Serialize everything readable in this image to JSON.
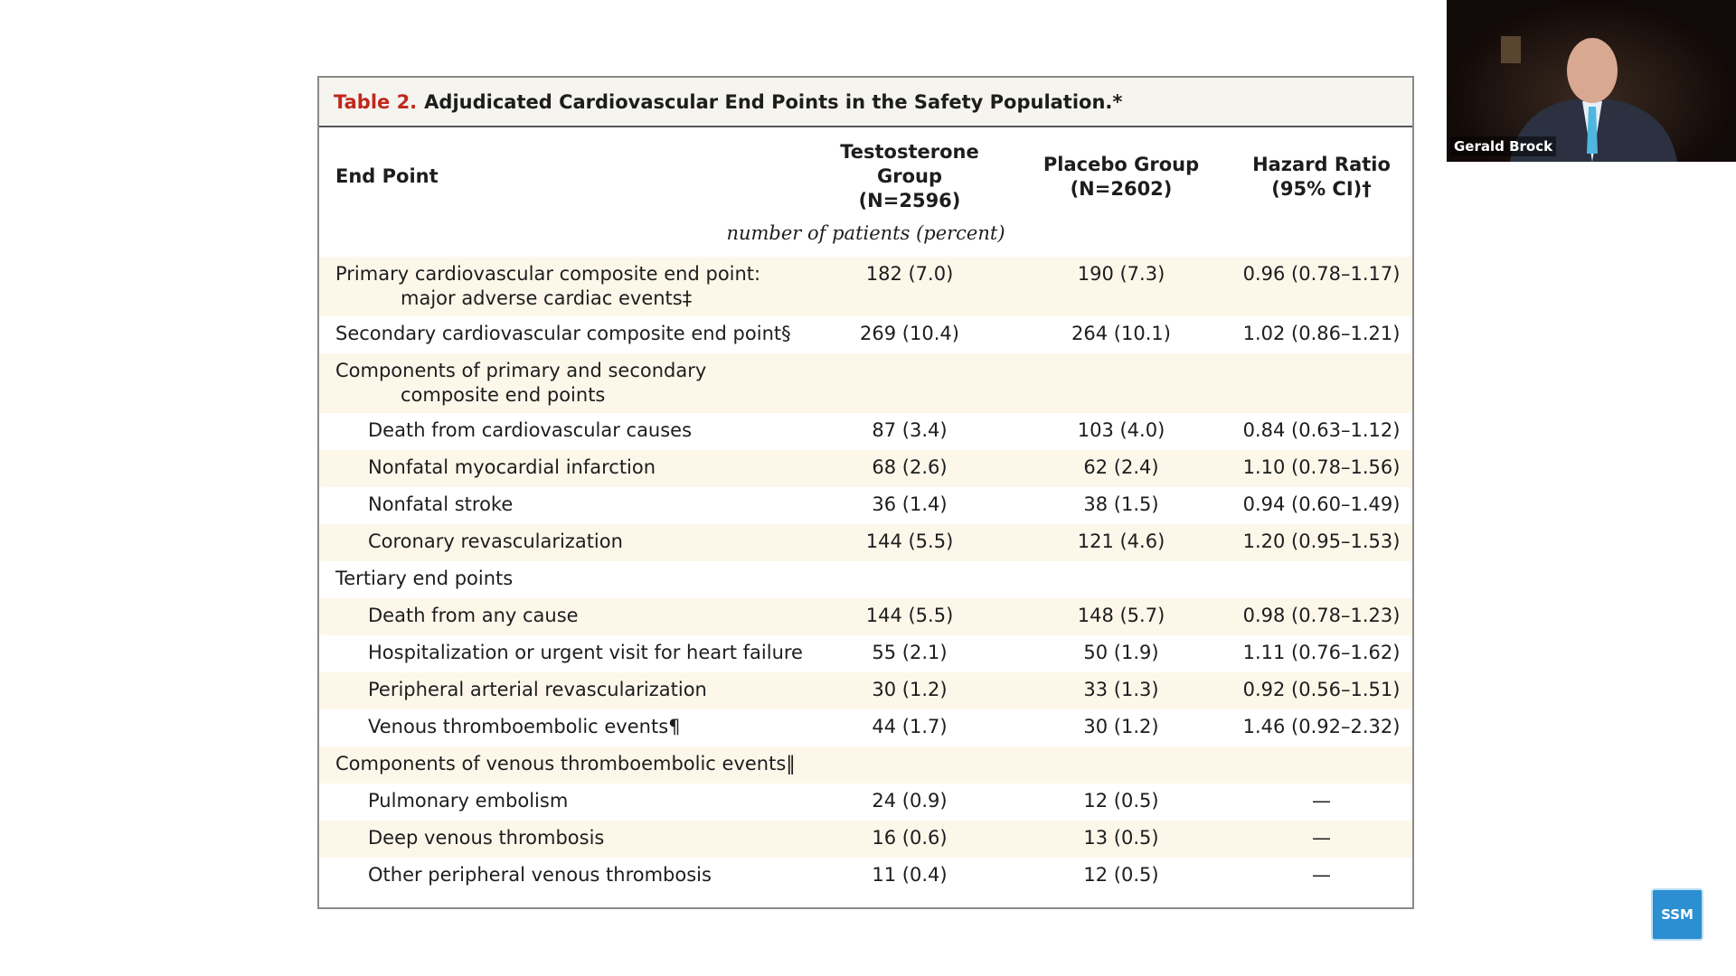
{
  "header": {
    "label": "Table 2.",
    "title": "Adjudicated Cardiovascular End Points in the Safety Population.*"
  },
  "table": {
    "columns": [
      [
        "End Point"
      ],
      [
        "Testosterone Group",
        "(N=2596)"
      ],
      [
        "Placebo Group",
        "(N=2602)"
      ],
      [
        "Hazard Ratio",
        "(95% CI)†"
      ]
    ],
    "unit_note": "number of patients (percent)",
    "rows": [
      {
        "label": "Primary cardiovascular composite end point: major adverse cardiac events‡",
        "values": [
          "182 (7.0)",
          "190 (7.3)",
          "0.96 (0.78–1.17)"
        ]
      },
      {
        "label": "Secondary cardiovascular composite end point§",
        "values": [
          "269 (10.4)",
          "264 (10.1)",
          "1.02 (0.86–1.21)"
        ]
      },
      {
        "label": "Components of primary and secondary composite end points",
        "rows": [
          {
            "label": "Death from cardiovascular causes",
            "values": [
              "87 (3.4)",
              "103 (4.0)",
              "0.84 (0.63–1.12)"
            ]
          },
          {
            "label": "Nonfatal myocardial infarction",
            "values": [
              "68 (2.6)",
              "62 (2.4)",
              "1.10 (0.78–1.56)"
            ]
          },
          {
            "label": "Nonfatal stroke",
            "values": [
              "36 (1.4)",
              "38 (1.5)",
              "0.94 (0.60–1.49)"
            ]
          },
          {
            "label": "Coronary revascularization",
            "values": [
              "144 (5.5)",
              "121 (4.6)",
              "1.20 (0.95–1.53)"
            ]
          }
        ]
      },
      {
        "label": "Tertiary end points",
        "rows": [
          {
            "label": "Death from any cause",
            "values": [
              "144 (5.5)",
              "148 (5.7)",
              "0.98 (0.78–1.23)"
            ]
          },
          {
            "label": "Hospitalization or urgent visit for heart failure",
            "values": [
              "55 (2.1)",
              "50 (1.9)",
              "1.11 (0.76–1.62)"
            ]
          },
          {
            "label": "Peripheral arterial revascularization",
            "values": [
              "30 (1.2)",
              "33 (1.3)",
              "0.92 (0.56–1.51)"
            ]
          },
          {
            "label": "Venous thromboembolic events¶",
            "values": [
              "44 (1.7)",
              "30 (1.2)",
              "1.46 (0.92–2.32)"
            ]
          }
        ]
      },
      {
        "label": "Components of venous thromboembolic events‖",
        "rows": [
          {
            "label": "Pulmonary embolism",
            "values": [
              "24 (0.9)",
              "12 (0.5)",
              "—"
            ]
          },
          {
            "label": "Deep venous thrombosis",
            "values": [
              "16 (0.6)",
              "13 (0.5)",
              "—"
            ]
          },
          {
            "label": "Other peripheral venous thrombosis",
            "values": [
              "11 (0.4)",
              "12 (0.5)",
              "—"
            ]
          }
        ]
      }
    ]
  },
  "video": {
    "name": "Gerald Brock"
  },
  "logo": {
    "text": "SSM"
  }
}
